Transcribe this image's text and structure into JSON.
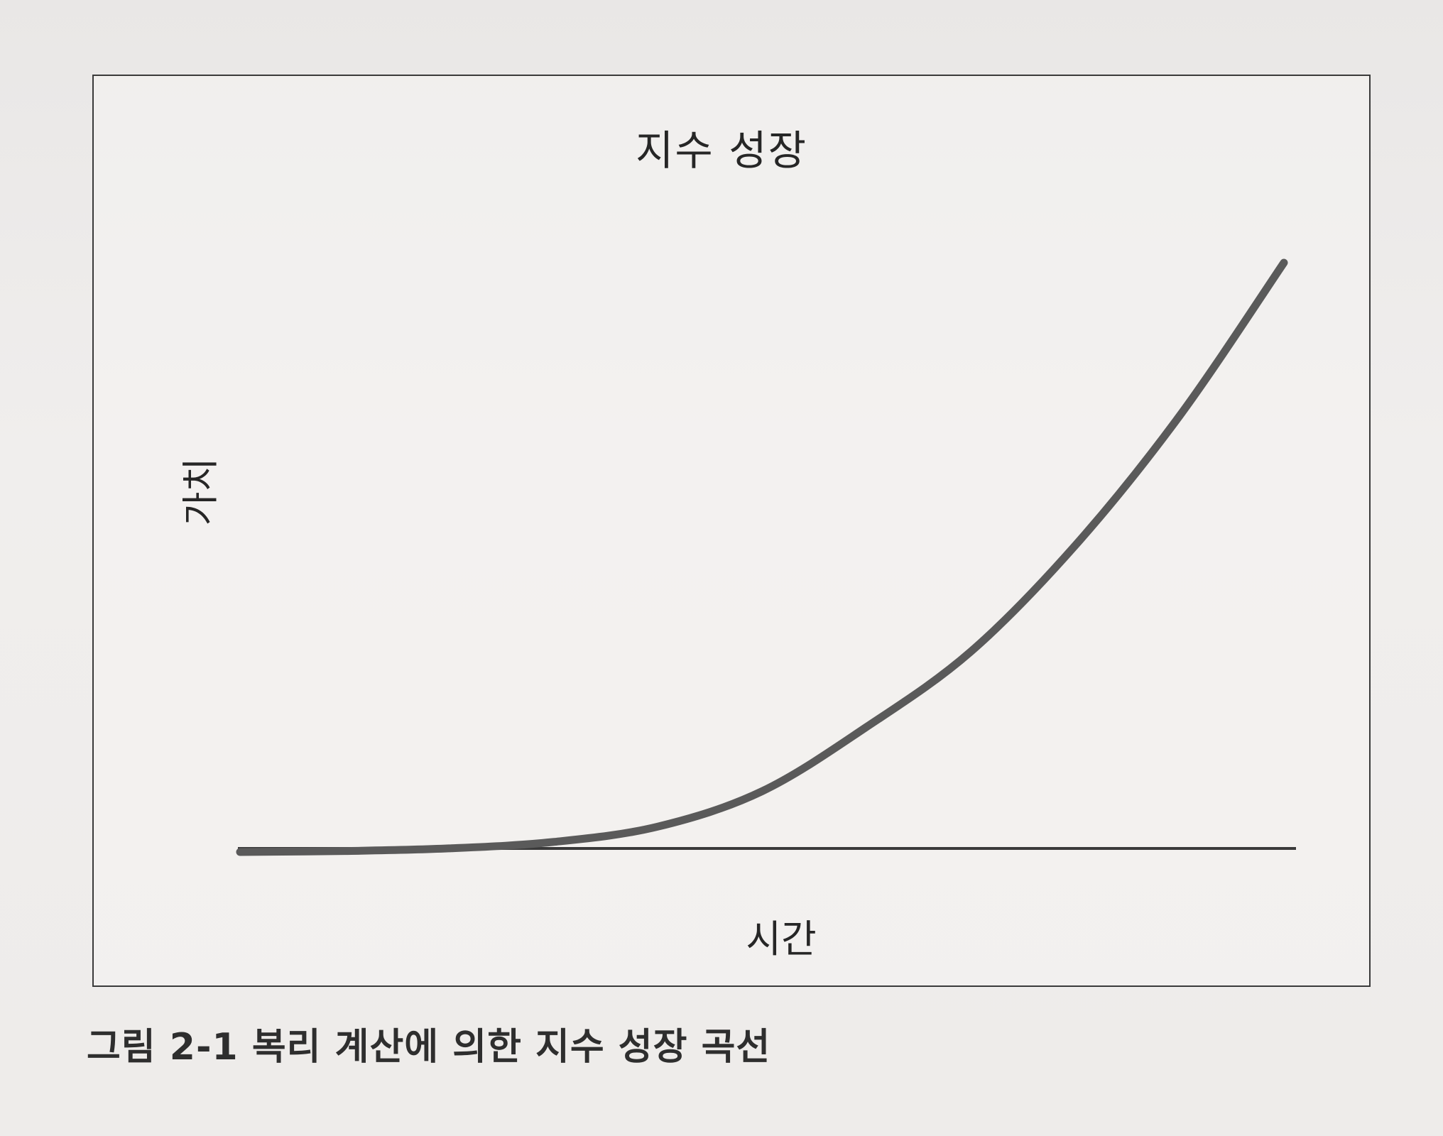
{
  "chart_data": {
    "type": "line",
    "title": "지수 성장",
    "xlabel": "시간",
    "ylabel": "가치",
    "x": [
      0,
      0.1,
      0.2,
      0.3,
      0.4,
      0.5,
      0.6,
      0.7,
      0.8,
      0.9,
      1.0
    ],
    "series": [
      {
        "values": [
          0,
          0.0017,
          0.0061,
          0.017,
          0.043,
          0.103,
          0.212,
          0.34,
          0.52,
          0.74,
          1.0
        ]
      }
    ],
    "xlim": [
      0,
      1
    ],
    "ylim": [
      0,
      1
    ],
    "grid": false,
    "ticks": false,
    "colors": {
      "curve": "#5a5a5a",
      "axis": "#3a3a3a"
    }
  },
  "caption": "그림 2-1 복리 계산에 의한 지수 성장 곡선"
}
